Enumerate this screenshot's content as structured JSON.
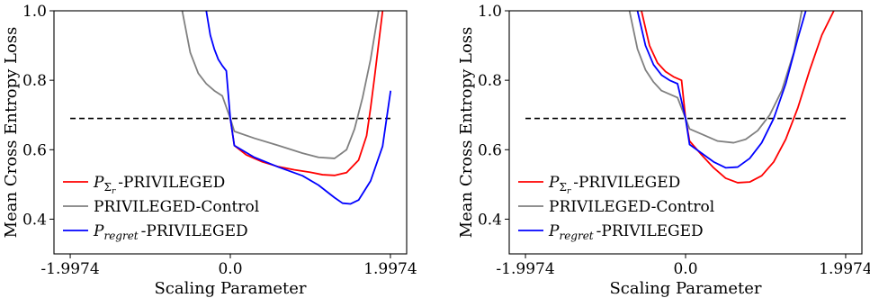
{
  "chart_data": [
    {
      "type": "line",
      "xlabel": "Scaling Parameter",
      "ylabel": "Mean Cross Entropy Loss",
      "xlim": [
        -2.2,
        2.2
      ],
      "ylim": [
        0.3,
        1.0
      ],
      "xtick_values": [
        -1.9974,
        0.0,
        1.9974
      ],
      "xtick_labels": [
        "-1.9974",
        "0.0",
        "1.9974"
      ],
      "ytick_values": [
        0.4,
        0.6,
        0.8,
        1.0
      ],
      "ytick_labels": [
        "0.4",
        "0.6",
        "0.8",
        "1.0"
      ],
      "legend_position": "lower-left",
      "reference_line": {
        "y": 0.69,
        "x": [
          -1.9974,
          1.9974
        ],
        "style": "dashed",
        "color": "#000000"
      },
      "series": [
        {
          "name": "P_Σr-PRIVILEGED",
          "label_main": "P",
          "label_sub": "Σ",
          "label_subsub": "r",
          "label_rest": "-PRIVILEGED",
          "color": "#ff0000",
          "x": [
            0.0,
            0.05,
            0.2,
            0.4,
            0.6,
            0.8,
            1.0,
            1.15,
            1.3,
            1.45,
            1.6,
            1.7,
            1.75,
            1.8,
            1.9
          ],
          "y": [
            0.69,
            0.612,
            0.585,
            0.565,
            0.551,
            0.542,
            0.535,
            0.528,
            0.526,
            0.534,
            0.57,
            0.64,
            0.72,
            0.81,
            1.0
          ]
        },
        {
          "name": "PRIVILEGED-Control",
          "label_main": "PRIVILEGED-Control",
          "label_sub": "",
          "label_subsub": "",
          "label_rest": "",
          "color": "#808080",
          "x": [
            -0.6,
            -0.5,
            -0.4,
            -0.3,
            -0.2,
            -0.1,
            0.0,
            0.05,
            0.3,
            0.6,
            0.9,
            1.1,
            1.3,
            1.45,
            1.55,
            1.65,
            1.75,
            1.85
          ],
          "y": [
            1.0,
            0.88,
            0.82,
            0.79,
            0.77,
            0.755,
            0.69,
            0.653,
            0.633,
            0.612,
            0.59,
            0.578,
            0.575,
            0.6,
            0.66,
            0.75,
            0.86,
            1.0
          ]
        },
        {
          "name": "P_regret-PRIVILEGED",
          "label_main": "P",
          "label_sub": "regret",
          "label_subsub": "",
          "label_rest": "-PRIVILEGED",
          "color": "#0000ff",
          "x": [
            -0.3,
            -0.25,
            -0.2,
            -0.15,
            -0.1,
            -0.05,
            0.0,
            0.05,
            0.3,
            0.6,
            0.9,
            1.1,
            1.3,
            1.4,
            1.5,
            1.6,
            1.75,
            1.9,
            2.0
          ],
          "y": [
            1.0,
            0.93,
            0.89,
            0.86,
            0.842,
            0.827,
            0.69,
            0.612,
            0.578,
            0.55,
            0.525,
            0.498,
            0.462,
            0.446,
            0.444,
            0.455,
            0.51,
            0.61,
            0.77
          ]
        }
      ]
    },
    {
      "type": "line",
      "xlabel": "Scaling Parameter",
      "ylabel": "Mean Cross Entropy Loss",
      "xlim": [
        -2.2,
        2.2
      ],
      "ylim": [
        0.3,
        1.0
      ],
      "xtick_values": [
        -1.9974,
        0.0,
        1.9974
      ],
      "xtick_labels": [
        "-1.9974",
        "0.0",
        "1.9974"
      ],
      "ytick_values": [
        0.4,
        0.6,
        0.8,
        1.0
      ],
      "ytick_labels": [
        "0.4",
        "0.6",
        "0.8",
        "1.0"
      ],
      "legend_position": "lower-left",
      "reference_line": {
        "y": 0.69,
        "x": [
          -1.9974,
          1.9974
        ],
        "style": "dashed",
        "color": "#000000"
      },
      "series": [
        {
          "name": "P_Σr-PRIVILEGED",
          "label_main": "P",
          "label_sub": "Σ",
          "label_subsub": "r",
          "label_rest": "-PRIVILEGED",
          "color": "#ff0000",
          "x": [
            -0.55,
            -0.45,
            -0.35,
            -0.25,
            -0.15,
            -0.05,
            0.0,
            0.05,
            0.2,
            0.35,
            0.5,
            0.65,
            0.8,
            0.95,
            1.1,
            1.25,
            1.4,
            1.55,
            1.7,
            1.85
          ],
          "y": [
            1.0,
            0.9,
            0.85,
            0.825,
            0.81,
            0.8,
            0.69,
            0.625,
            0.585,
            0.548,
            0.518,
            0.505,
            0.507,
            0.525,
            0.565,
            0.63,
            0.72,
            0.83,
            0.93,
            1.0
          ]
        },
        {
          "name": "PRIVILEGED-Control",
          "label_main": "PRIVILEGED-Control",
          "label_sub": "",
          "label_subsub": "",
          "label_rest": "",
          "color": "#808080",
          "x": [
            -0.7,
            -0.6,
            -0.5,
            -0.4,
            -0.3,
            -0.2,
            -0.1,
            0.0,
            0.05,
            0.2,
            0.4,
            0.6,
            0.75,
            0.9,
            1.05,
            1.2,
            1.35,
            1.45
          ],
          "y": [
            1.0,
            0.89,
            0.83,
            0.795,
            0.77,
            0.76,
            0.75,
            0.69,
            0.66,
            0.645,
            0.625,
            0.62,
            0.63,
            0.655,
            0.7,
            0.77,
            0.88,
            1.0
          ]
        },
        {
          "name": "P_regret-PRIVILEGED",
          "label_main": "P",
          "label_sub": "regret",
          "label_subsub": "",
          "label_rest": "-PRIVILEGED",
          "color": "#0000ff",
          "x": [
            -0.6,
            -0.5,
            -0.4,
            -0.3,
            -0.2,
            -0.1,
            0.0,
            0.05,
            0.2,
            0.35,
            0.5,
            0.65,
            0.8,
            0.95,
            1.1,
            1.25,
            1.4,
            1.5
          ],
          "y": [
            1.0,
            0.9,
            0.845,
            0.815,
            0.8,
            0.79,
            0.69,
            0.615,
            0.59,
            0.565,
            0.548,
            0.55,
            0.575,
            0.62,
            0.69,
            0.79,
            0.92,
            1.0
          ]
        }
      ]
    }
  ]
}
